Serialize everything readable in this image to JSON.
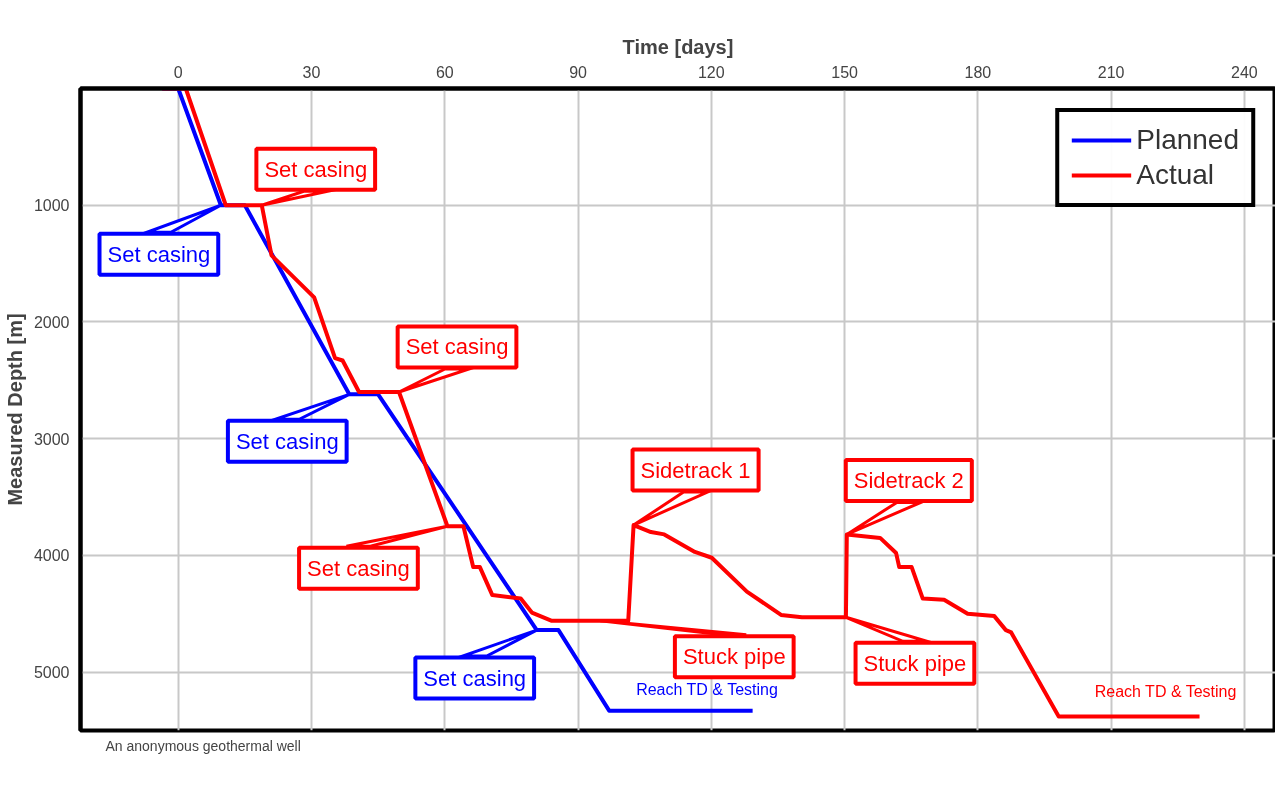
{
  "chart_data": {
    "type": "line",
    "xlabel": "Time [days]",
    "ylabel": "Measured Depth [m]",
    "xlim": [
      -22,
      247
    ],
    "ylim": [
      5500,
      0
    ],
    "xticks": [
      0,
      30,
      60,
      90,
      120,
      150,
      180,
      210,
      240
    ],
    "yticks": [
      1000,
      2000,
      3000,
      4000,
      5000
    ],
    "grid": true,
    "legend": "top right",
    "line_style": "solid",
    "marker": "none",
    "series": [
      {
        "name": "Planned",
        "color": "#0000ff",
        "x": [
          -3.6,
          0,
          9.6,
          15,
          38.5,
          45,
          80.7,
          85.6,
          97,
          129.3
        ],
        "values": [
          0,
          0,
          1000,
          1000,
          2620,
          2620,
          4640,
          4640,
          5330,
          5330
        ]
      },
      {
        "name": "Actual",
        "color": "#ff0000",
        "x": [
          -3.6,
          1.7,
          10.7,
          18.8,
          21,
          30.6,
          35.3,
          37,
          40.7,
          49.7,
          60.6,
          64.2,
          66.4,
          67.9,
          70.7,
          77.1,
          79.6,
          84.1,
          95,
          101.3,
          102.5,
          106.4,
          109.4,
          116.3,
          120.1,
          128,
          135.7,
          140.4,
          150.3,
          150.5,
          158,
          161.6,
          162.3,
          165.1,
          167.6,
          172.4,
          177.7,
          183.7,
          186.3,
          187.5,
          198.2,
          229.9
        ],
        "values": [
          0,
          0,
          1000,
          1000,
          1430,
          1790,
          2310,
          2330,
          2600,
          2600,
          3750,
          3750,
          4100,
          4100,
          4340,
          4370,
          4490,
          4560,
          4560,
          4560,
          3740,
          3800,
          3820,
          3970,
          4020,
          4310,
          4510,
          4530,
          4530,
          3820,
          3850,
          3980,
          4100,
          4100,
          4370,
          4380,
          4500,
          4520,
          4640,
          4660,
          5380,
          5380
        ]
      }
    ],
    "annotations": [
      {
        "text": "Set casing",
        "x": 18.8,
        "y": 1000
      },
      {
        "text": "Set casing",
        "x": 9.6,
        "y": 1000
      },
      {
        "text": "Set casing",
        "x": 49.7,
        "y": 2600
      },
      {
        "text": "Set casing",
        "x": 38.5,
        "y": 2620
      },
      {
        "text": "Set casing",
        "x": 60.6,
        "y": 3750
      },
      {
        "text": "Set casing",
        "x": 80.7,
        "y": 4640
      },
      {
        "text": "Sidetrack 1",
        "x": 102.5,
        "y": 3740
      },
      {
        "text": "Sidetrack 2",
        "x": 150.5,
        "y": 3820
      },
      {
        "text": "Stuck pipe",
        "x": 95,
        "y": 4560
      },
      {
        "text": "Stuck pipe",
        "x": 150.3,
        "y": 4530
      },
      {
        "text": "Reach TD & Testing",
        "x": 97,
        "y": 5330
      },
      {
        "text": "Reach TD & Testing",
        "x": 198.2,
        "y": 5380
      },
      "An anonymous geothermal well"
    ]
  }
}
